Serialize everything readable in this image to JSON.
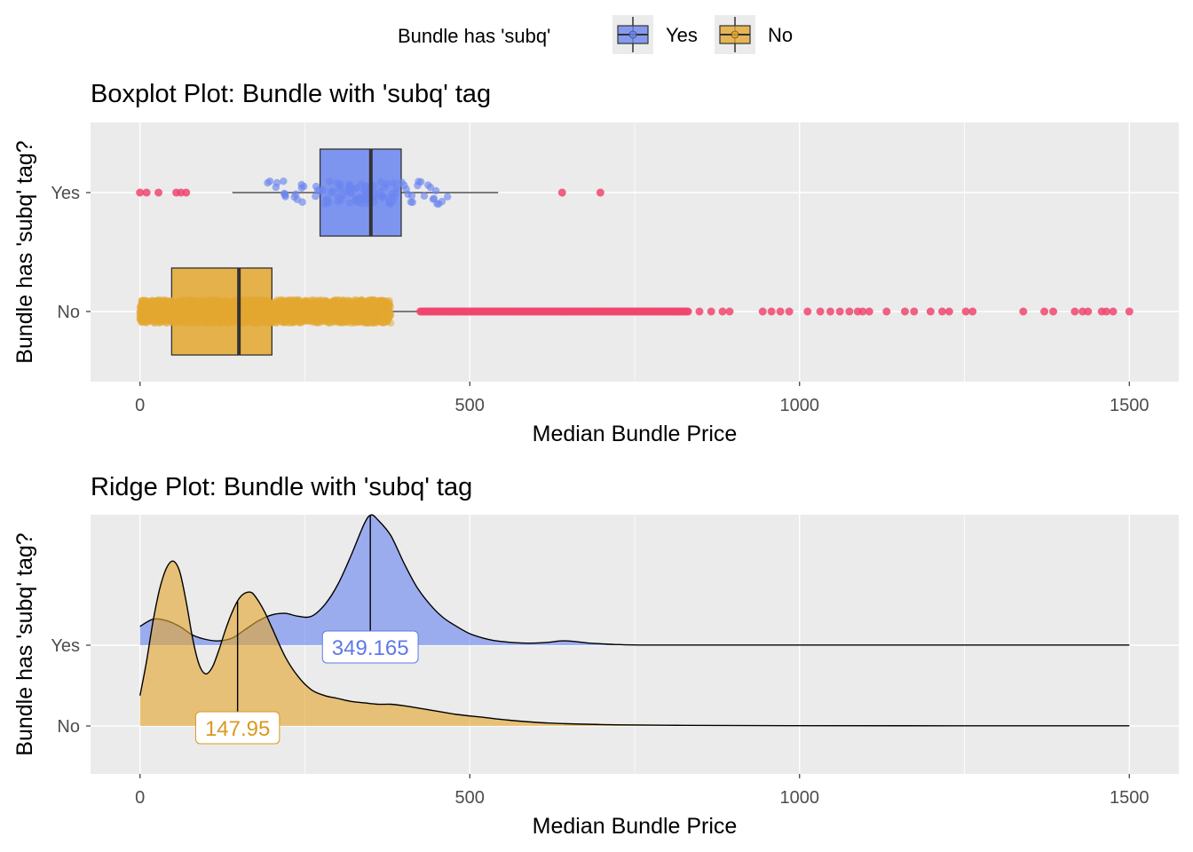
{
  "legend": {
    "title": "Bundle has 'subq'",
    "entries": [
      {
        "label": "Yes",
        "color": "#6b86f0"
      },
      {
        "label": "No",
        "color": "#e3a72f"
      }
    ]
  },
  "colors": {
    "panel": "#ebebeb",
    "grid": "#ffffff",
    "outlier": "#f0476e",
    "yes": "#6b86f0",
    "no": "#e3a72f",
    "yes_label": "#5f79e6",
    "no_label": "#d9991f"
  },
  "chart_data": [
    {
      "type": "boxplot",
      "title": "Boxplot Plot: Bundle with 'subq' tag",
      "xlabel": "Median Bundle Price",
      "ylabel": "Bundle has 'subq' tag?",
      "xlim": [
        -75,
        1575
      ],
      "xticks": [
        0,
        500,
        1000,
        1500
      ],
      "categories": [
        "Yes",
        "No"
      ],
      "grid": true,
      "boxes": [
        {
          "name": "Yes",
          "whisker_low": 140,
          "q1": 273,
          "median": 350,
          "q3": 396,
          "whisker_high": 543,
          "jitter_range": [
            165,
            495
          ],
          "outliers": [
            0,
            10,
            28,
            55,
            62,
            70,
            640,
            698
          ]
        },
        {
          "name": "No",
          "whisker_low": 0,
          "q1": 48,
          "median": 150,
          "q3": 200,
          "whisker_high": 425,
          "jitter_range": [
            0,
            380
          ],
          "outlier_range": [
            425,
            1500
          ]
        }
      ]
    },
    {
      "type": "ridge",
      "title": "Ridge Plot: Bundle with 'subq' tag",
      "xlabel": "Median Bundle Price",
      "ylabel": "Bundle has 'subq' tag?",
      "xlim": [
        -75,
        1575
      ],
      "xticks": [
        0,
        500,
        1000,
        1500
      ],
      "categories": [
        "Yes",
        "No"
      ],
      "grid": true,
      "series": [
        {
          "name": "Yes",
          "median": 349.165,
          "median_label": "349.165",
          "x": [
            0,
            20,
            40,
            60,
            80,
            100,
            120,
            140,
            160,
            180,
            200,
            220,
            240,
            260,
            280,
            300,
            320,
            340,
            350,
            360,
            380,
            400,
            420,
            440,
            460,
            480,
            500,
            520,
            540,
            560,
            580,
            600,
            620,
            640,
            660,
            680,
            700,
            720,
            750,
            800,
            1000,
            1500
          ],
          "density": [
            0.13,
            0.18,
            0.17,
            0.13,
            0.07,
            0.04,
            0.03,
            0.05,
            0.11,
            0.17,
            0.21,
            0.22,
            0.2,
            0.2,
            0.28,
            0.42,
            0.62,
            0.84,
            0.9,
            0.87,
            0.76,
            0.57,
            0.4,
            0.28,
            0.19,
            0.13,
            0.08,
            0.05,
            0.03,
            0.02,
            0.015,
            0.015,
            0.02,
            0.03,
            0.025,
            0.015,
            0.01,
            0.005,
            0.002,
            0.001,
            0.001,
            0.001
          ]
        },
        {
          "name": "No",
          "median": 147.95,
          "median_label": "147.95",
          "x": [
            0,
            10,
            20,
            30,
            40,
            50,
            60,
            70,
            80,
            90,
            100,
            110,
            120,
            130,
            140,
            150,
            160,
            170,
            180,
            190,
            200,
            220,
            240,
            260,
            280,
            300,
            320,
            340,
            360,
            380,
            400,
            440,
            480,
            520,
            560,
            620,
            700,
            800,
            1000,
            1500
          ],
          "density": [
            0.21,
            0.45,
            0.73,
            0.95,
            1.09,
            1.14,
            1.07,
            0.86,
            0.6,
            0.42,
            0.36,
            0.41,
            0.53,
            0.67,
            0.79,
            0.88,
            0.92,
            0.92,
            0.86,
            0.78,
            0.68,
            0.48,
            0.34,
            0.25,
            0.21,
            0.19,
            0.17,
            0.16,
            0.15,
            0.15,
            0.14,
            0.11,
            0.08,
            0.06,
            0.04,
            0.02,
            0.01,
            0.005,
            0.002,
            0.001
          ]
        }
      ]
    }
  ]
}
